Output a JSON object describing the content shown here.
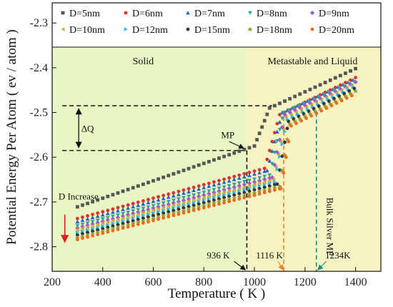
{
  "chart_data": {
    "type": "scatter",
    "title": "",
    "xlabel": "Temperature ( K )",
    "ylabel": "Potential Energy Per Atom ( ev / atom )",
    "xlim": [
      200,
      1500
    ],
    "ylim": [
      -2.855,
      -2.255
    ],
    "xticks": [
      200,
      400,
      600,
      800,
      1000,
      1200,
      1400
    ],
    "yticks": [
      -2.8,
      -2.7,
      -2.6,
      -2.5,
      -2.4,
      -2.3
    ],
    "legend": "top, inside plot, two rows",
    "grid": false,
    "regions": [
      {
        "label": "Solid",
        "x_range": [
          200,
          970
        ],
        "color": "#e9f6c4"
      },
      {
        "label": "Metastable and Liquid",
        "x_range": [
          970,
          1500
        ],
        "color": "#f5f3c2"
      }
    ],
    "series": [
      {
        "name": "D=5nm",
        "color": "#555555",
        "marker": "square",
        "points": [
          [
            300,
            -2.711
          ],
          [
            1000,
            -2.575
          ],
          [
            1060,
            -2.49
          ],
          [
            1400,
            -2.402
          ]
        ]
      },
      {
        "name": "D=6nm",
        "color": "#e03030",
        "marker": "circle",
        "points": [
          [
            300,
            -2.737
          ],
          [
            1040,
            -2.625
          ],
          [
            1100,
            -2.505
          ],
          [
            1400,
            -2.422
          ]
        ]
      },
      {
        "name": "D=7nm",
        "color": "#2b5fc9",
        "marker": "triangle-up",
        "points": [
          [
            300,
            -2.744
          ],
          [
            1050,
            -2.63
          ],
          [
            1110,
            -2.5
          ],
          [
            1400,
            -2.425
          ]
        ]
      },
      {
        "name": "D=8nm",
        "color": "#2aa69a",
        "marker": "triangle-down",
        "points": [
          [
            300,
            -2.753
          ],
          [
            1060,
            -2.64
          ],
          [
            1115,
            -2.5
          ],
          [
            1400,
            -2.43
          ]
        ]
      },
      {
        "name": "D=9nm",
        "color": "#9c5ad6",
        "marker": "diamond",
        "points": [
          [
            300,
            -2.758
          ],
          [
            1070,
            -2.645
          ],
          [
            1120,
            -2.505
          ],
          [
            1400,
            -2.432
          ]
        ]
      },
      {
        "name": "D=10nm",
        "color": "#e0a030",
        "marker": "triangle-left",
        "points": [
          [
            300,
            -2.762
          ],
          [
            1075,
            -2.65
          ],
          [
            1125,
            -2.51
          ],
          [
            1400,
            -2.435
          ]
        ]
      },
      {
        "name": "D=12nm",
        "color": "#30b8e8",
        "marker": "triangle-right",
        "points": [
          [
            300,
            -2.768
          ],
          [
            1080,
            -2.655
          ],
          [
            1130,
            -2.515
          ],
          [
            1400,
            -2.44
          ]
        ]
      },
      {
        "name": "D=15nm",
        "color": "#333344",
        "marker": "hexagon",
        "points": [
          [
            300,
            -2.774
          ],
          [
            1090,
            -2.66
          ],
          [
            1135,
            -2.52
          ],
          [
            1400,
            -2.445
          ]
        ]
      },
      {
        "name": "D=18nm",
        "color": "#9a9a30",
        "marker": "star",
        "points": [
          [
            300,
            -2.78
          ],
          [
            1100,
            -2.665
          ],
          [
            1140,
            -2.525
          ],
          [
            1400,
            -2.452
          ]
        ]
      },
      {
        "name": "D=20nm",
        "color": "#ee6a1e",
        "marker": "circle",
        "points": [
          [
            300,
            -2.784
          ],
          [
            1105,
            -2.67
          ],
          [
            1145,
            -2.53
          ],
          [
            1400,
            -2.458
          ]
        ]
      }
    ],
    "annotations": {
      "solid_label": "Solid",
      "liquid_label": "Metastable and Liquid",
      "delta_q": "ΔQ",
      "mp": "MP",
      "d_increase": "D Increase",
      "bulk_mp": "Bulk Silver MP",
      "t1": "936 K",
      "t2": "1116 K",
      "t3": "1234K",
      "t1_x": 970,
      "t2_x": 1116,
      "t3_x": 1245,
      "upper_level": -2.485,
      "lower_level": -2.585,
      "t1_color": "#111111",
      "t2_color": "#f08030",
      "t3_color": "#1a8a8a",
      "arrow_red": "#e02020"
    }
  }
}
